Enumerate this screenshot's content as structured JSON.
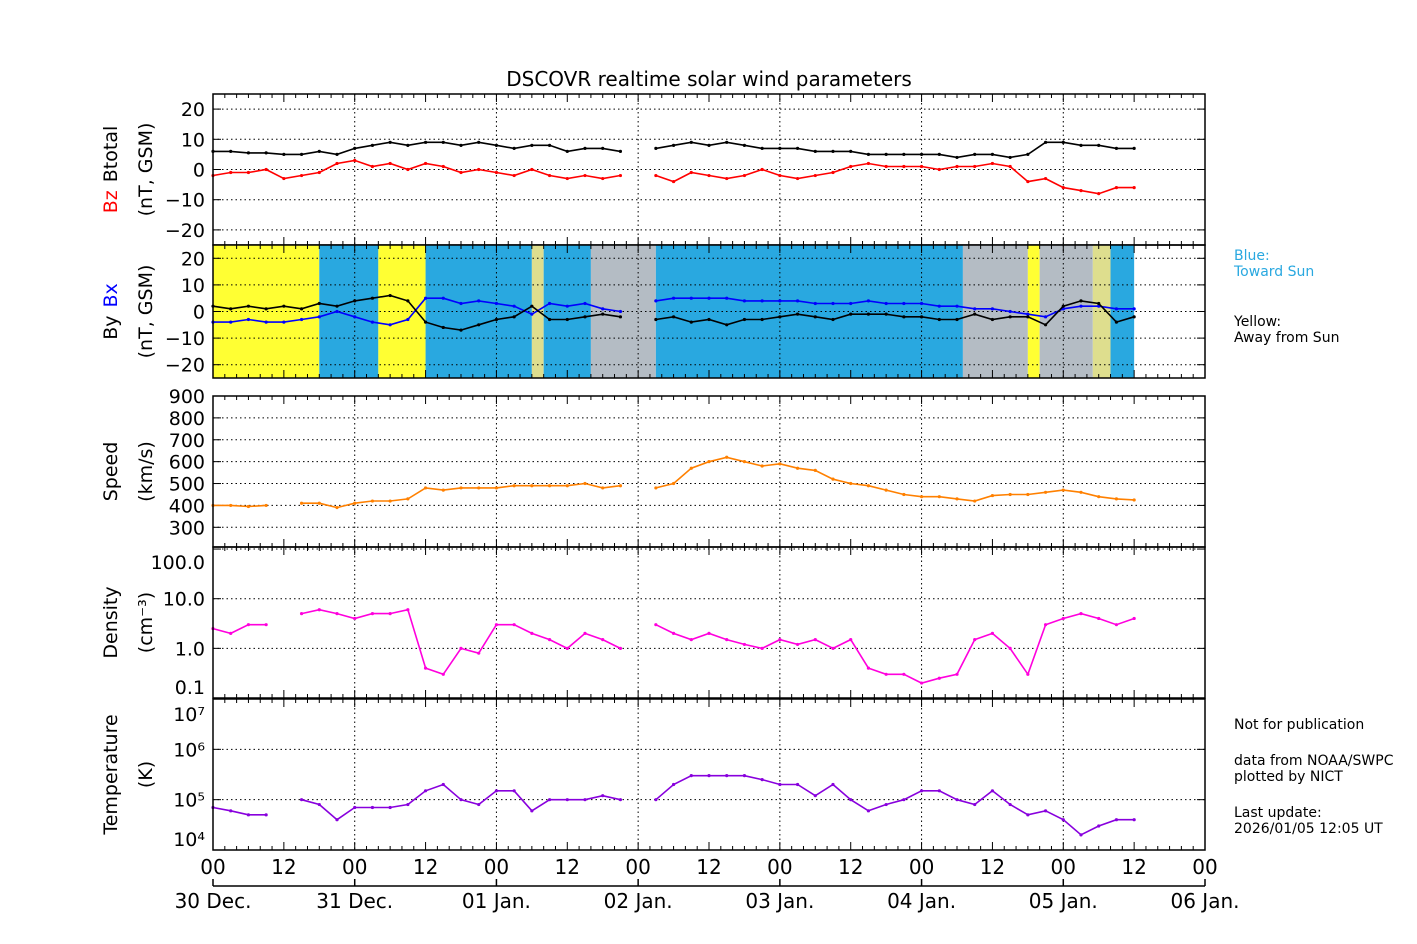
{
  "chart_data": {
    "type": "line",
    "title": "DSCOVR realtime solar wind parameters",
    "x": [
      "2025-12-30T00:00",
      "2025-12-30T03:00",
      "2025-12-30T06:00",
      "2025-12-30T09:00",
      "2025-12-30T12:00",
      "2025-12-30T15:00",
      "2025-12-30T18:00",
      "2025-12-30T21:00",
      "2025-12-31T00:00",
      "2025-12-31T03:00",
      "2025-12-31T06:00",
      "2025-12-31T09:00",
      "2025-12-31T12:00",
      "2025-12-31T15:00",
      "2025-12-31T18:00",
      "2025-12-31T21:00",
      "2026-01-01T00:00",
      "2026-01-01T03:00",
      "2026-01-01T06:00",
      "2026-01-01T09:00",
      "2026-01-01T12:00",
      "2026-01-01T15:00",
      "2026-01-01T18:00",
      "2026-01-01T21:00",
      "2026-01-02T00:00",
      "2026-01-02T03:00",
      "2026-01-02T06:00",
      "2026-01-02T09:00",
      "2026-01-02T12:00",
      "2026-01-02T15:00",
      "2026-01-02T18:00",
      "2026-01-02T21:00",
      "2026-01-03T00:00",
      "2026-01-03T03:00",
      "2026-01-03T06:00",
      "2026-01-03T09:00",
      "2026-01-03T12:00",
      "2026-01-03T15:00",
      "2026-01-03T18:00",
      "2026-01-03T21:00",
      "2026-01-04T00:00",
      "2026-01-04T03:00",
      "2026-01-04T06:00",
      "2026-01-04T09:00",
      "2026-01-04T12:00",
      "2026-01-04T15:00",
      "2026-01-04T18:00",
      "2026-01-04T21:00",
      "2026-01-05T00:00",
      "2026-01-05T03:00",
      "2026-01-05T06:00",
      "2026-01-05T09:00",
      "2026-01-05T12:00"
    ],
    "xlim": [
      "2025-12-30T00:00",
      "2026-01-06T00:00"
    ],
    "x_tick_labels": [
      "00",
      "12",
      "00",
      "12",
      "00",
      "12",
      "00",
      "12",
      "00",
      "12",
      "00",
      "12",
      "00",
      "12",
      "00"
    ],
    "date_labels": [
      "30 Dec.",
      "31 Dec.",
      "01 Jan.",
      "02 Jan.",
      "03 Jan.",
      "04 Jan.",
      "05 Jan.",
      "06 Jan."
    ],
    "grid": true,
    "panels": [
      {
        "id": "magnetic-total",
        "ylabel_parts": [
          {
            "text": "Bz",
            "color": "#ff0000"
          },
          {
            "text": "Btotal",
            "color": "#000000"
          }
        ],
        "yunit": "(nT, GSM)",
        "scale": "linear",
        "ylim": [
          -25,
          25
        ],
        "yticks": [
          20,
          10,
          0,
          -10,
          -20
        ],
        "ytick_labels": [
          "20",
          "10",
          "0",
          "−10",
          "−20"
        ],
        "series": [
          {
            "name": "Btotal",
            "color": "#000000",
            "values": [
              6,
              6,
              5.5,
              5.5,
              5,
              5,
              6,
              5,
              7,
              8,
              9,
              8,
              9,
              9,
              8,
              9,
              8,
              7,
              8,
              8,
              6,
              7,
              7,
              6,
              null,
              7,
              8,
              9,
              8,
              9,
              8,
              7,
              7,
              7,
              6,
              6,
              6,
              5,
              5,
              5,
              5,
              5,
              4,
              5,
              5,
              4,
              5,
              9,
              9,
              8,
              8,
              7,
              7
            ]
          },
          {
            "name": "Bz",
            "color": "#ff0000",
            "values": [
              -2,
              -1,
              -1,
              0,
              -3,
              -2,
              -1,
              2,
              3,
              1,
              2,
              0,
              2,
              1,
              -1,
              0,
              -1,
              -2,
              0,
              -2,
              -3,
              -2,
              -3,
              -2,
              null,
              -2,
              -4,
              -1,
              -2,
              -3,
              -2,
              0,
              -2,
              -3,
              -2,
              -1,
              1,
              2,
              1,
              1,
              1,
              0,
              1,
              1,
              2,
              1,
              -4,
              -3,
              -6,
              -7,
              -8,
              -6,
              -6
            ]
          }
        ]
      },
      {
        "id": "magnetic-components",
        "ylabel_parts": [
          {
            "text": "By",
            "color": "#000000"
          },
          {
            "text": "Bx",
            "color": "#0000ff"
          }
        ],
        "yunit": "(nT, GSM)",
        "scale": "linear",
        "ylim": [
          -25,
          25
        ],
        "yticks": [
          20,
          10,
          0,
          -10,
          -20
        ],
        "ytick_labels": [
          "20",
          "10",
          "0",
          "−10",
          "−20"
        ],
        "polarity_colors": {
          "toward": "#29a8e0",
          "away": "#ffff33",
          "mixed": "#b4bcc4",
          "mixed_away": "#dede8e"
        },
        "polarity": [
          {
            "start": "2025-12-30T00:00",
            "end": "2025-12-30T18:00",
            "polarity": "away"
          },
          {
            "start": "2025-12-30T18:00",
            "end": "2025-12-31T04:00",
            "polarity": "toward"
          },
          {
            "start": "2025-12-31T04:00",
            "end": "2025-12-31T12:00",
            "polarity": "away"
          },
          {
            "start": "2025-12-31T12:00",
            "end": "2026-01-01T06:00",
            "polarity": "toward"
          },
          {
            "start": "2026-01-01T06:00",
            "end": "2026-01-01T08:00",
            "polarity": "mixed_away"
          },
          {
            "start": "2026-01-01T08:00",
            "end": "2026-01-01T16:00",
            "polarity": "toward"
          },
          {
            "start": "2026-01-01T16:00",
            "end": "2026-01-02T03:00",
            "polarity": "mixed"
          },
          {
            "start": "2026-01-02T03:00",
            "end": "2026-01-04T07:00",
            "polarity": "toward"
          },
          {
            "start": "2026-01-04T07:00",
            "end": "2026-01-04T18:00",
            "polarity": "mixed"
          },
          {
            "start": "2026-01-04T18:00",
            "end": "2026-01-04T20:00",
            "polarity": "away"
          },
          {
            "start": "2026-01-04T20:00",
            "end": "2026-01-05T05:00",
            "polarity": "mixed"
          },
          {
            "start": "2026-01-05T05:00",
            "end": "2026-01-05T08:00",
            "polarity": "mixed_away"
          },
          {
            "start": "2026-01-05T08:00",
            "end": "2026-01-05T12:00",
            "polarity": "toward"
          }
        ],
        "series": [
          {
            "name": "Bx",
            "color": "#0000ff",
            "values": [
              -4,
              -4,
              -3,
              -4,
              -4,
              -3,
              -2,
              0,
              -2,
              -4,
              -5,
              -3,
              5,
              5,
              3,
              4,
              3,
              2,
              -1,
              3,
              2,
              3,
              1,
              0,
              null,
              4,
              5,
              5,
              5,
              5,
              4,
              4,
              4,
              4,
              3,
              3,
              3,
              4,
              3,
              3,
              3,
              2,
              2,
              1,
              1,
              0,
              -1,
              -2,
              1,
              2,
              2,
              1,
              1
            ]
          },
          {
            "name": "By",
            "color": "#000000",
            "values": [
              2,
              1,
              2,
              1,
              2,
              1,
              3,
              2,
              4,
              5,
              6,
              4,
              -4,
              -6,
              -7,
              -5,
              -3,
              -2,
              2,
              -3,
              -3,
              -2,
              -1,
              -2,
              null,
              -3,
              -2,
              -4,
              -3,
              -5,
              -3,
              -3,
              -2,
              -1,
              -2,
              -3,
              -1,
              -1,
              -1,
              -2,
              -2,
              -3,
              -3,
              -1,
              -3,
              -2,
              -2,
              -5,
              2,
              4,
              3,
              -4,
              -2
            ]
          }
        ]
      },
      {
        "id": "speed",
        "ylabel_parts": [
          {
            "text": "Speed",
            "color": "#000000"
          }
        ],
        "yunit": "(km/s)",
        "scale": "linear",
        "ylim": [
          210,
          900
        ],
        "yticks": [
          900,
          800,
          700,
          600,
          500,
          400,
          300
        ],
        "ytick_labels": [
          "900",
          "800",
          "700",
          "600",
          "500",
          "400",
          "300"
        ],
        "series": [
          {
            "name": "Speed",
            "color": "#ff8000",
            "values": [
              400,
              400,
              395,
              400,
              null,
              410,
              410,
              390,
              410,
              420,
              420,
              430,
              480,
              470,
              480,
              480,
              480,
              490,
              490,
              490,
              490,
              500,
              480,
              490,
              null,
              480,
              500,
              570,
              600,
              620,
              600,
              580,
              590,
              570,
              560,
              520,
              500,
              490,
              470,
              450,
              440,
              440,
              430,
              420,
              445,
              450,
              450,
              460,
              470,
              460,
              440,
              430,
              425
            ]
          }
        ]
      },
      {
        "id": "density",
        "ylabel_parts": [
          {
            "text": "Density",
            "color": "#000000"
          }
        ],
        "yunit": "(cm⁻³)",
        "scale": "log",
        "ylim": [
          0.1,
          110
        ],
        "yticks": [
          100,
          10,
          1,
          0.1
        ],
        "ytick_labels": [
          "100.0",
          "10.0",
          "1.0",
          "0.1"
        ],
        "series": [
          {
            "name": "Density",
            "color": "#ff00dd",
            "values": [
              2.5,
              2,
              3,
              3,
              null,
              5,
              6,
              5,
              4,
              5,
              5,
              6,
              0.4,
              0.3,
              1,
              0.8,
              3,
              3,
              2,
              1.5,
              1,
              2,
              1.5,
              1,
              null,
              3,
              2,
              1.5,
              2,
              1.5,
              1.2,
              1,
              1.5,
              1.2,
              1.5,
              1,
              1.5,
              0.4,
              0.3,
              0.3,
              0.2,
              0.25,
              0.3,
              1.5,
              2,
              1,
              0.3,
              3,
              4,
              5,
              4,
              3,
              4
            ]
          }
        ]
      },
      {
        "id": "temperature",
        "ylabel_parts": [
          {
            "text": "Temperature",
            "color": "#000000"
          }
        ],
        "yunit": "(K)",
        "scale": "log",
        "ylim": [
          10000,
          10000000
        ],
        "yticks": [
          10000000,
          1000000,
          100000,
          10000
        ],
        "ytick_labels": [
          "10⁷",
          "10⁶",
          "10⁵",
          "10⁴"
        ],
        "series": [
          {
            "name": "Temperature",
            "color": "#8800dd",
            "values": [
              70000,
              60000,
              50000,
              50000,
              null,
              100000,
              80000,
              40000,
              70000,
              70000,
              70000,
              80000,
              150000,
              200000,
              100000,
              80000,
              150000,
              150000,
              60000,
              100000,
              100000,
              100000,
              120000,
              100000,
              null,
              100000,
              200000,
              300000,
              300000,
              300000,
              300000,
              250000,
              200000,
              200000,
              120000,
              200000,
              100000,
              60000,
              80000,
              100000,
              150000,
              150000,
              100000,
              80000,
              150000,
              80000,
              50000,
              60000,
              40000,
              20000,
              30000,
              40000,
              40000
            ]
          }
        ]
      }
    ]
  },
  "legend": {
    "blue_label": "Blue:",
    "blue_text": "Toward Sun",
    "yellow_label": "Yellow:",
    "yellow_text": "Away from Sun"
  },
  "notes": {
    "not_for_publication": "Not for publication",
    "data_source": "data from NOAA/SWPC",
    "plotted_by": "plotted by NICT",
    "last_update_label": "Last update:",
    "last_update_value": "2026/01/05 12:05 UT"
  }
}
